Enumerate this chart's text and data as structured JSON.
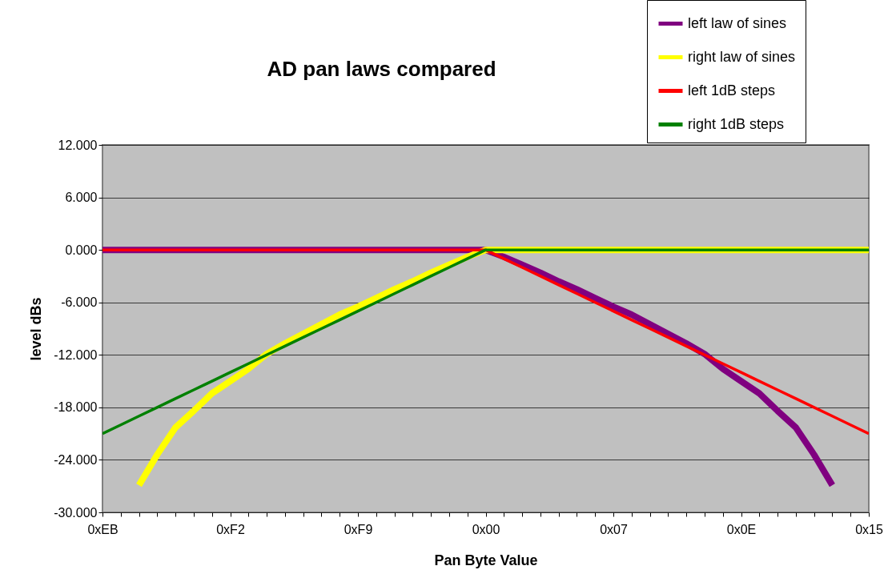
{
  "chart_data": {
    "type": "line",
    "title": "AD pan laws compared",
    "xlabel": "Pan Byte Value",
    "ylabel": "level dBs",
    "categories": [
      "0xEB",
      null,
      null,
      null,
      null,
      null,
      null,
      "0xF2",
      null,
      null,
      null,
      null,
      null,
      null,
      "0xF9",
      null,
      null,
      null,
      null,
      null,
      null,
      "0x00",
      null,
      null,
      null,
      null,
      null,
      null,
      "0x07",
      null,
      null,
      null,
      null,
      null,
      null,
      "0x0E",
      null,
      null,
      null,
      null,
      null,
      null,
      "0x15"
    ],
    "ylim": [
      -30,
      12
    ],
    "yticks": [
      {
        "value": -30,
        "label": "-30.000"
      },
      {
        "value": -24,
        "label": "-24.000"
      },
      {
        "value": -18,
        "label": "-18.000"
      },
      {
        "value": -12,
        "label": "-12.000"
      },
      {
        "value": -6,
        "label": "-6.000"
      },
      {
        "value": 0,
        "label": "0.000"
      },
      {
        "value": 6,
        "label": "6.000"
      },
      {
        "value": 12,
        "label": "12.000"
      }
    ],
    "grid": "y",
    "legend": "top right",
    "series": [
      {
        "name": "left law of sines",
        "color": "#800080",
        "values": [
          0,
          0,
          0,
          0,
          0,
          0,
          0,
          0,
          0,
          0,
          0,
          0,
          0,
          0,
          0,
          0,
          0,
          0,
          0,
          0,
          0,
          0,
          -0.8,
          -1.7,
          -2.6,
          -3.6,
          -4.5,
          -5.5,
          -6.5,
          -7.4,
          -8.5,
          -9.6,
          -10.7,
          -11.9,
          -13.6,
          -15.0,
          -16.4,
          -18.4,
          -20.3,
          -23.4,
          -26.9,
          null,
          null
        ]
      },
      {
        "name": "right law of sines",
        "color": "#ffff00",
        "values": [
          null,
          null,
          -26.9,
          -23.4,
          -20.3,
          -18.4,
          -16.4,
          -15.0,
          -13.6,
          -11.9,
          -10.7,
          -9.6,
          -8.5,
          -7.4,
          -6.5,
          -5.5,
          -4.5,
          -3.6,
          -2.6,
          -1.7,
          -0.8,
          0,
          0,
          0,
          0,
          0,
          0,
          0,
          0,
          0,
          0,
          0,
          0,
          0,
          0,
          0,
          0,
          0,
          0,
          0,
          0,
          0,
          0
        ]
      },
      {
        "name": "left 1dB steps",
        "color": "#ff0000",
        "values": [
          0,
          0,
          0,
          0,
          0,
          0,
          0,
          0,
          0,
          0,
          0,
          0,
          0,
          0,
          0,
          0,
          0,
          0,
          0,
          0,
          0,
          0,
          -1,
          -2,
          -3,
          -4,
          -5,
          -6,
          -7,
          -8,
          -9,
          -10,
          -11,
          -12,
          -13,
          -14,
          -15,
          -16,
          -17,
          -18,
          -19,
          -20,
          -21
        ]
      },
      {
        "name": "right 1dB steps",
        "color": "#008000",
        "values": [
          -21,
          -20,
          -19,
          -18,
          -17,
          -16,
          -15,
          -14,
          -13,
          -12,
          -11,
          -10,
          -9,
          -8,
          -7,
          -6,
          -5,
          -4,
          -3,
          -2,
          -1,
          0,
          0,
          0,
          0,
          0,
          0,
          0,
          0,
          0,
          0,
          0,
          0,
          0,
          0,
          0,
          0,
          0,
          0,
          0,
          0,
          0,
          0
        ]
      }
    ]
  }
}
